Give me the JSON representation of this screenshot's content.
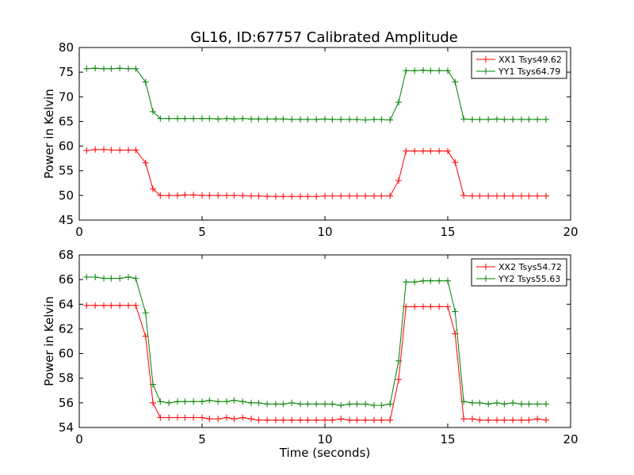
{
  "title": "GL16, ID:67757 Calibrated Amplitude",
  "chart_data": [
    {
      "type": "line",
      "title": "GL16, ID:67757 Calibrated Amplitude",
      "xlabel": "",
      "ylabel": "Power in Kelvin",
      "xlim": [
        0,
        20
      ],
      "ylim": [
        45,
        80
      ],
      "xticks": [
        0,
        5,
        10,
        15,
        20
      ],
      "yticks": [
        45,
        50,
        55,
        60,
        65,
        70,
        75,
        80
      ],
      "grid": false,
      "legend_position": "top-right",
      "x": [
        0.3,
        0.65,
        1.0,
        1.3,
        1.65,
        2.0,
        2.3,
        2.7,
        3.0,
        3.3,
        3.65,
        4.0,
        4.3,
        4.65,
        5.0,
        5.3,
        5.65,
        6.0,
        6.3,
        6.65,
        7.0,
        7.3,
        7.65,
        8.0,
        8.3,
        8.65,
        9.0,
        9.3,
        9.65,
        10.0,
        10.3,
        10.65,
        11.0,
        11.3,
        11.65,
        12.0,
        12.3,
        12.65,
        13.0,
        13.3,
        13.65,
        14.0,
        14.3,
        14.65,
        15.0,
        15.3,
        15.65,
        16.0,
        16.3,
        16.65,
        17.0,
        17.3,
        17.65,
        18.0,
        18.3,
        18.65,
        19.0
      ],
      "series": [
        {
          "name": "XX1 Tsys49.62",
          "color": "#ff0000",
          "values": [
            59.1,
            59.3,
            59.3,
            59.2,
            59.2,
            59.2,
            59.2,
            56.6,
            51.3,
            50.0,
            50.0,
            50.0,
            50.1,
            50.1,
            50.0,
            50.0,
            50.0,
            50.0,
            50.0,
            50.0,
            49.9,
            49.9,
            49.8,
            49.8,
            49.8,
            49.8,
            49.8,
            49.8,
            49.8,
            49.9,
            49.9,
            49.9,
            49.9,
            49.9,
            49.9,
            49.9,
            49.9,
            49.9,
            53.0,
            59.0,
            59.0,
            59.0,
            59.0,
            59.0,
            59.0,
            56.7,
            50.0,
            49.9,
            49.9,
            49.9,
            49.9,
            49.9,
            49.9,
            49.9,
            49.9,
            49.9,
            49.9
          ]
        },
        {
          "name": "YY1 Tsys64.79",
          "color": "#008000",
          "values": [
            75.7,
            75.8,
            75.7,
            75.7,
            75.8,
            75.7,
            75.7,
            73.0,
            67.0,
            65.6,
            65.6,
            65.6,
            65.6,
            65.6,
            65.6,
            65.6,
            65.5,
            65.6,
            65.5,
            65.6,
            65.5,
            65.5,
            65.5,
            65.5,
            65.5,
            65.4,
            65.4,
            65.4,
            65.4,
            65.5,
            65.4,
            65.4,
            65.4,
            65.4,
            65.3,
            65.4,
            65.4,
            65.3,
            68.9,
            75.3,
            75.3,
            75.4,
            75.3,
            75.3,
            75.3,
            73.0,
            65.5,
            65.4,
            65.4,
            65.4,
            65.5,
            65.4,
            65.4,
            65.4,
            65.4,
            65.4,
            65.4
          ]
        }
      ]
    },
    {
      "type": "line",
      "title": "",
      "xlabel": "Time (seconds)",
      "ylabel": "Power in Kelvin",
      "xlim": [
        0,
        20
      ],
      "ylim": [
        54,
        68
      ],
      "xticks": [
        0,
        5,
        10,
        15,
        20
      ],
      "yticks": [
        54,
        56,
        58,
        60,
        62,
        64,
        66,
        68
      ],
      "grid": false,
      "legend_position": "top-right",
      "x": [
        0.3,
        0.65,
        1.0,
        1.3,
        1.65,
        2.0,
        2.3,
        2.7,
        3.0,
        3.3,
        3.65,
        4.0,
        4.3,
        4.65,
        5.0,
        5.3,
        5.65,
        6.0,
        6.3,
        6.65,
        7.0,
        7.3,
        7.65,
        8.0,
        8.3,
        8.65,
        9.0,
        9.3,
        9.65,
        10.0,
        10.3,
        10.65,
        11.0,
        11.3,
        11.65,
        12.0,
        12.3,
        12.65,
        13.0,
        13.3,
        13.65,
        14.0,
        14.3,
        14.65,
        15.0,
        15.3,
        15.65,
        16.0,
        16.3,
        16.65,
        17.0,
        17.3,
        17.65,
        18.0,
        18.3,
        18.65,
        19.0
      ],
      "series": [
        {
          "name": "XX2 Tsys54.72",
          "color": "#ff0000",
          "values": [
            63.9,
            63.9,
            63.9,
            63.9,
            63.9,
            63.9,
            63.9,
            61.4,
            56.0,
            54.8,
            54.8,
            54.8,
            54.8,
            54.8,
            54.8,
            54.7,
            54.7,
            54.8,
            54.7,
            54.8,
            54.7,
            54.6,
            54.6,
            54.6,
            54.6,
            54.6,
            54.6,
            54.6,
            54.6,
            54.6,
            54.6,
            54.7,
            54.6,
            54.6,
            54.6,
            54.6,
            54.6,
            54.6,
            57.9,
            63.8,
            63.8,
            63.8,
            63.8,
            63.8,
            63.8,
            61.6,
            54.7,
            54.7,
            54.6,
            54.6,
            54.6,
            54.6,
            54.6,
            54.6,
            54.6,
            54.7,
            54.6
          ]
        },
        {
          "name": "YY2 Tsys55.63",
          "color": "#008000",
          "values": [
            66.2,
            66.2,
            66.1,
            66.1,
            66.1,
            66.2,
            66.1,
            63.3,
            57.5,
            56.1,
            56.0,
            56.1,
            56.1,
            56.1,
            56.1,
            56.2,
            56.1,
            56.1,
            56.2,
            56.1,
            56.0,
            56.0,
            55.9,
            55.9,
            55.9,
            56.0,
            55.9,
            55.9,
            55.9,
            55.9,
            55.9,
            55.8,
            55.9,
            55.9,
            55.9,
            55.8,
            55.8,
            55.9,
            59.4,
            65.8,
            65.8,
            65.9,
            65.9,
            65.9,
            65.9,
            63.4,
            56.1,
            56.0,
            56.0,
            55.9,
            56.0,
            55.9,
            56.0,
            55.9,
            55.9,
            55.9,
            55.9
          ]
        }
      ]
    }
  ]
}
